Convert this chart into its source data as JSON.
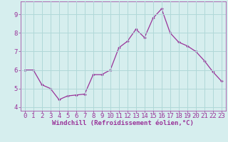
{
  "x": [
    0,
    1,
    2,
    3,
    4,
    5,
    6,
    7,
    8,
    9,
    10,
    11,
    12,
    13,
    14,
    15,
    16,
    17,
    18,
    19,
    20,
    21,
    22,
    23
  ],
  "y": [
    6.0,
    6.0,
    5.2,
    5.0,
    4.4,
    4.6,
    4.65,
    4.7,
    5.75,
    5.75,
    6.0,
    7.2,
    7.55,
    8.2,
    7.75,
    8.8,
    9.3,
    8.0,
    7.5,
    7.3,
    7.0,
    6.5,
    5.9,
    5.4
  ],
  "line_color": "#993399",
  "marker": "D",
  "marker_size": 2.2,
  "bg_color": "#d6eeee",
  "grid_color": "#b0d8d8",
  "xlabel": "Windchill (Refroidissement éolien,°C)",
  "ylim": [
    3.8,
    9.7
  ],
  "xlim": [
    -0.5,
    23.5
  ],
  "xticks": [
    0,
    1,
    2,
    3,
    4,
    5,
    6,
    7,
    8,
    9,
    10,
    11,
    12,
    13,
    14,
    15,
    16,
    17,
    18,
    19,
    20,
    21,
    22,
    23
  ],
  "yticks": [
    4,
    5,
    6,
    7,
    8,
    9
  ],
  "xlabel_fontsize": 6.5,
  "tick_fontsize": 6.5,
  "xlabel_color": "#993399",
  "tick_color": "#993399",
  "strip_color": "#993399",
  "strip_bg": "#c8c8e8"
}
